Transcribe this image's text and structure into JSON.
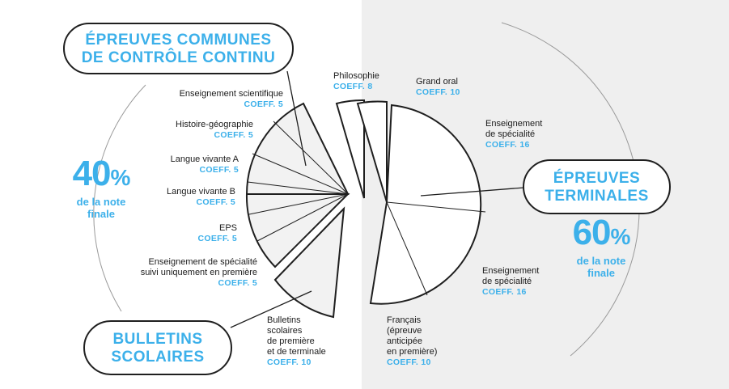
{
  "colors": {
    "accent": "#3cb0ea",
    "outline": "#1f1f1f",
    "slice_fill": "#f2f2f2",
    "right_bg": "#efefef"
  },
  "left": {
    "title_line1": "ÉPREUVES COMMUNES",
    "title_line2": "DE CONTRÔLE CONTINU",
    "percent": "40",
    "percent_sign": "%",
    "percent_sub1": "de la note",
    "percent_sub2": "finale",
    "items": [
      {
        "name": "Enseignement scientifique",
        "coef": "COEFF. 5"
      },
      {
        "name": "Histoire-géographie",
        "coef": "COEFF. 5"
      },
      {
        "name": "Langue vivante A",
        "coef": "COEFF. 5"
      },
      {
        "name": "Langue vivante B",
        "coef": "COEFF. 5"
      },
      {
        "name": "EPS",
        "coef": "COEFF. 5"
      },
      {
        "name_line1": "Enseignement de spécialité",
        "name_line2": "suivi uniquement en première",
        "coef": "COEFF. 5"
      }
    ]
  },
  "bulletins": {
    "title_line1": "BULLETINS",
    "title_line2": "SCOLAIRES",
    "label_lines": [
      "Bulletins",
      "scolaires",
      "de première",
      "et de terminale"
    ],
    "coef": "COEFF. 10"
  },
  "right": {
    "title_line1": "ÉPREUVES",
    "title_line2": "TERMINALES",
    "percent": "60",
    "percent_sign": "%",
    "percent_sub1": "de la note",
    "percent_sub2": "finale",
    "philosophie": {
      "name": "Philosophie",
      "coef": "COEFF. 8"
    },
    "grand_oral": {
      "name": "Grand oral",
      "coef": "COEFF. 10"
    },
    "specialite1": {
      "line1": "Enseignement",
      "line2": "de spécialité",
      "coef": "COEFF. 16"
    },
    "specialite2": {
      "line1": "Enseignement",
      "line2": "de spécialité",
      "coef": "COEFF. 16"
    },
    "francais": {
      "lines": [
        "Français",
        "(épreuve",
        "anticipée",
        "en première)"
      ],
      "coef": "COEFF. 10"
    }
  }
}
